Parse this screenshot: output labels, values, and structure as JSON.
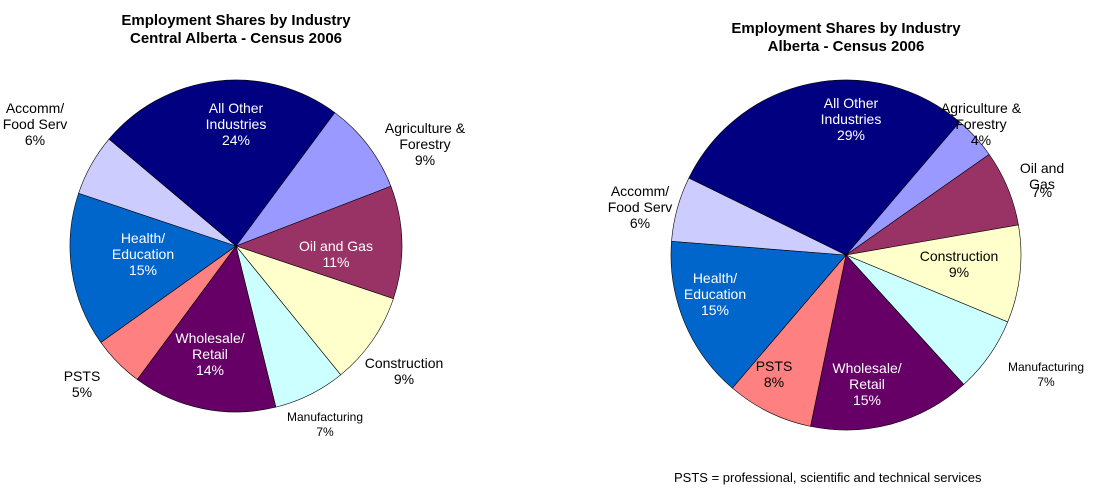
{
  "chart_data": [
    {
      "type": "pie",
      "title": "Employment Shares by Industry",
      "subtitle": "Central Alberta - Census 2006",
      "categories": [
        "Agriculture &\nForestry",
        "Oil and Gas",
        "Construction",
        "Manufacturing",
        "Wholesale/\nRetail",
        "PSTS",
        "Health/\nEducation",
        "Accomm/\nFood Serv",
        "All Other\nIndustries"
      ],
      "values": [
        9,
        11,
        9,
        7,
        14,
        5,
        15,
        6,
        24
      ],
      "value_labels": [
        "9%",
        "11%",
        "9%",
        "7%",
        "14%",
        "5%",
        "15%",
        "6%",
        "24%"
      ],
      "colors": [
        "#9999ff",
        "#993366",
        "#ffffcc",
        "#ccffff",
        "#660066",
        "#ff8080",
        "#0066cc",
        "#ccccff",
        "#000080"
      ]
    },
    {
      "type": "pie",
      "title": "Employment Shares by Industry",
      "subtitle": "Alberta - Census 2006",
      "categories": [
        "Agriculture &\nForestry",
        "Oil and Gas",
        "Construction",
        "Manufacturing",
        "Wholesale/\nRetail",
        "PSTS",
        "Health/\nEducation",
        "Accomm/\nFood Serv",
        "All Other\nIndustries"
      ],
      "values": [
        4,
        7,
        9,
        7,
        15,
        8,
        15,
        6,
        29
      ],
      "value_labels": [
        "4%",
        "7%",
        "9%",
        "7%",
        "15%",
        "8%",
        "15%",
        "6%",
        "29%"
      ],
      "colors": [
        "#9999ff",
        "#993366",
        "#ffffcc",
        "#ccffff",
        "#660066",
        "#ff8080",
        "#0066cc",
        "#ccccff",
        "#000080"
      ]
    }
  ],
  "footnote": "PSTS = professional, scientific and technical services"
}
